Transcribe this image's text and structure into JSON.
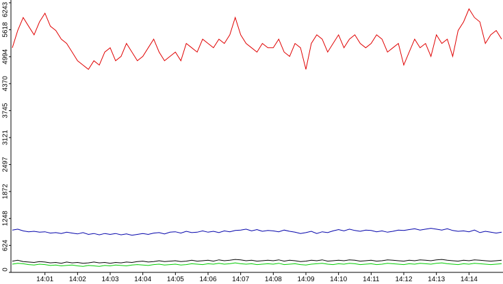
{
  "chart_data": {
    "type": "line",
    "categories": [
      null,
      null,
      null,
      null,
      null,
      null,
      "14:01",
      null,
      null,
      null,
      null,
      null,
      "14:02",
      null,
      null,
      null,
      null,
      null,
      "14:03",
      null,
      null,
      null,
      null,
      null,
      "14:04",
      null,
      null,
      null,
      null,
      null,
      "14:05",
      null,
      null,
      null,
      null,
      null,
      "14:06",
      null,
      null,
      null,
      null,
      null,
      "14:07",
      null,
      null,
      null,
      null,
      null,
      "14:08",
      null,
      null,
      null,
      null,
      null,
      "14:09",
      null,
      null,
      null,
      null,
      null,
      "14:10",
      null,
      null,
      null,
      null,
      null,
      "14:11",
      null,
      null,
      null,
      null,
      null,
      "14:12",
      null,
      null,
      null,
      null,
      null,
      "14:13",
      null,
      null,
      null,
      null,
      null,
      "14:14",
      null,
      null,
      null,
      null,
      null,
      null
    ],
    "series": [
      {
        "color": "#e00000",
        "values": [
          5200,
          5600,
          5900,
          5700,
          5500,
          5800,
          6000,
          5700,
          5600,
          5400,
          5300,
          5100,
          4900,
          4800,
          4700,
          4900,
          4800,
          5100,
          5200,
          4900,
          5000,
          5300,
          5100,
          4900,
          5000,
          5200,
          5400,
          5100,
          4900,
          5000,
          5100,
          4900,
          5300,
          5200,
          5100,
          5400,
          5300,
          5200,
          5400,
          5300,
          5500,
          5900,
          5500,
          5300,
          5200,
          5100,
          5300,
          5200,
          5200,
          5400,
          5100,
          5000,
          5300,
          5200,
          4700,
          5300,
          5500,
          5400,
          5100,
          5300,
          5500,
          5200,
          5400,
          5500,
          5300,
          5200,
          5300,
          5500,
          5400,
          5100,
          5200,
          5300,
          4800,
          5100,
          5400,
          5200,
          5300,
          5000,
          5500,
          5300,
          5400,
          5000,
          5600,
          5800,
          6100,
          5900,
          5800,
          5300,
          5500,
          5600,
          5400
        ]
      },
      {
        "color": "#0000aa",
        "values": [
          980,
          1000,
          960,
          940,
          950,
          930,
          940,
          910,
          920,
          900,
          930,
          910,
          890,
          920,
          880,
          900,
          870,
          900,
          880,
          900,
          870,
          890,
          860,
          880,
          900,
          880,
          910,
          920,
          890,
          930,
          940,
          910,
          950,
          920,
          930,
          960,
          930,
          950,
          920,
          960,
          940,
          970,
          980,
          1000,
          960,
          990,
          950,
          970,
          960,
          940,
          980,
          950,
          930,
          900,
          920,
          950,
          900,
          940,
          920,
          960,
          990,
          960,
          1000,
          970,
          950,
          980,
          970,
          940,
          960,
          930,
          950,
          980,
          970,
          990,
          1010,
          980,
          1000,
          1020,
          1000,
          980,
          1010,
          970,
          950,
          960,
          940,
          980,
          920,
          950,
          930,
          910,
          930
        ]
      },
      {
        "color": "#000000",
        "values": [
          260,
          280,
          250,
          240,
          230,
          250,
          240,
          220,
          230,
          210,
          240,
          220,
          230,
          210,
          220,
          240,
          220,
          230,
          210,
          230,
          220,
          240,
          230,
          250,
          260,
          240,
          250,
          270,
          250,
          260,
          270,
          250,
          260,
          280,
          260,
          270,
          280,
          260,
          290,
          270,
          280,
          300,
          290,
          270,
          280,
          260,
          270,
          280,
          270,
          290,
          260,
          280,
          270,
          250,
          260,
          280,
          270,
          290,
          260,
          270,
          280,
          270,
          290,
          280,
          260,
          270,
          280,
          260,
          270,
          290,
          280,
          270,
          260,
          280,
          270,
          290,
          280,
          270,
          290,
          300,
          280,
          270,
          260,
          280,
          270,
          290,
          280,
          270,
          260,
          270,
          280
        ]
      },
      {
        "color": "#00cc00",
        "values": [
          190,
          210,
          200,
          180,
          170,
          190,
          180,
          160,
          170,
          150,
          160,
          170,
          150,
          140,
          160,
          150,
          140,
          160,
          150,
          170,
          160,
          150,
          170,
          180,
          170,
          160,
          180,
          190,
          170,
          180,
          190,
          170,
          180,
          200,
          190,
          180,
          200,
          190,
          210,
          190,
          200,
          220,
          200,
          190,
          200,
          180,
          190,
          200,
          190,
          210,
          180,
          190,
          200,
          180,
          170,
          190,
          200,
          210,
          190,
          180,
          200,
          190,
          210,
          200,
          180,
          190,
          200,
          180,
          190,
          210,
          200,
          190,
          180,
          200,
          190,
          210,
          200,
          190,
          210,
          220,
          200,
          190,
          180,
          200,
          190,
          210,
          200,
          190,
          180,
          190,
          200
        ]
      }
    ],
    "ylim": [
      0,
      6243
    ],
    "yticks": [
      0,
      624,
      1248,
      1872,
      2497,
      3121,
      3745,
      4370,
      4994,
      5618,
      6243
    ]
  }
}
